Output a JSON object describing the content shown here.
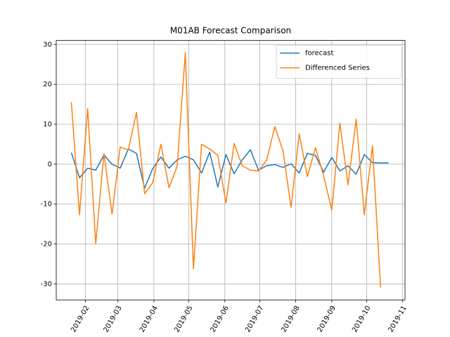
{
  "chart_data": {
    "type": "line",
    "title": "M01AB Forecast Comparison",
    "x": [
      "2019-01-20",
      "2019-01-27",
      "2019-02-03",
      "2019-02-10",
      "2019-02-17",
      "2019-02-24",
      "2019-03-03",
      "2019-03-10",
      "2019-03-17",
      "2019-03-24",
      "2019-03-31",
      "2019-04-07",
      "2019-04-14",
      "2019-04-21",
      "2019-04-28",
      "2019-05-05",
      "2019-05-12",
      "2019-05-19",
      "2019-05-26",
      "2019-06-02",
      "2019-06-09",
      "2019-06-16",
      "2019-06-23",
      "2019-06-30",
      "2019-07-07",
      "2019-07-14",
      "2019-07-21",
      "2019-07-28",
      "2019-08-04",
      "2019-08-11",
      "2019-08-18",
      "2019-08-25",
      "2019-09-01",
      "2019-09-08",
      "2019-09-15",
      "2019-09-22",
      "2019-09-29",
      "2019-10-06",
      "2019-10-13",
      "2019-10-20"
    ],
    "series": [
      {
        "name": "forecast",
        "color": "#1f77b4",
        "values": [
          2.9,
          -3.4,
          -1,
          -1.5,
          2.3,
          0,
          -1,
          3.8,
          2.7,
          -6,
          -1.1,
          1.8,
          -1,
          1.1,
          2,
          1.1,
          -2.2,
          3,
          -5.7,
          2.4,
          -2.4,
          1.1,
          3.6,
          -1.5,
          -0.4,
          -0.1,
          -0.8,
          0.1,
          -2.2,
          2.7,
          2.2,
          -2,
          1.7,
          -1.7,
          -0.4,
          -2.5,
          2.4,
          0.4,
          0.3,
          0.3
        ]
      },
      {
        "name": "Differenced Series",
        "color": "#ff7f0e",
        "values": [
          15.5,
          -12.7,
          13.9,
          -19.9,
          2.7,
          -12.5,
          4.3,
          3.6,
          13,
          -7.4,
          -4.6,
          5,
          -5.9,
          -0.5,
          27.9,
          -26.2,
          5,
          3.8,
          2.2,
          -9.7,
          5.2,
          -0.4,
          -1.5,
          -1.7,
          1,
          9.4,
          3.4,
          -10.8,
          7.6,
          -3.1,
          4.1,
          -2.9,
          -11.5,
          10.3,
          -5.2,
          11.3,
          -12.7,
          4.6,
          -30.9,
          null
        ]
      }
    ],
    "xlim": [
      "2019-01-07",
      "2019-11-03"
    ],
    "xticks": [
      "2019-02",
      "2019-03",
      "2019-04",
      "2019-05",
      "2019-06",
      "2019-07",
      "2019-08",
      "2019-09",
      "2019-10",
      "2019-11"
    ],
    "ylim": [
      -34,
      31
    ],
    "yticks": [
      -30,
      -20,
      -10,
      0,
      10,
      20,
      30
    ],
    "grid": true,
    "legend": "upper right"
  }
}
